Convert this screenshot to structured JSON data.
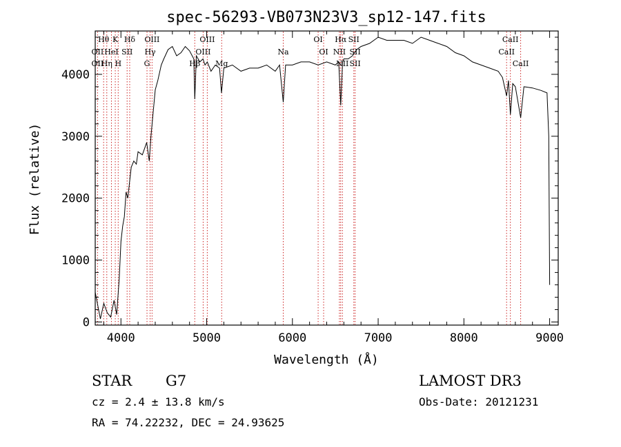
{
  "chart_data": {
    "type": "line",
    "title": "spec-56293-VB073N23V3_sp12-147.fits",
    "xlabel": "Wavelength (Å)",
    "ylabel": "Flux (relative)",
    "xlim": [
      3700,
      9100
    ],
    "ylim": [
      -50,
      4700
    ],
    "x_ticks": [
      4000,
      5000,
      6000,
      7000,
      8000,
      9000
    ],
    "y_ticks": [
      0,
      1000,
      2000,
      3000,
      4000
    ],
    "grid": false,
    "series": [
      {
        "x": [
          3700,
          3760,
          3800,
          3840,
          3880,
          3920,
          3950,
          3980,
          4000,
          4020,
          4040,
          4060,
          4080,
          4100,
          4120,
          4150,
          4180,
          4200,
          4250,
          4300,
          4330,
          4350,
          4380,
          4400,
          4430,
          4470,
          4500,
          4550,
          4600,
          4650,
          4700,
          4750,
          4800,
          4850,
          4861,
          4880,
          4920,
          4957,
          4980,
          5007,
          5050,
          5100,
          5150,
          5173,
          5200,
          5300,
          5400,
          5500,
          5600,
          5700,
          5800,
          5850,
          5893,
          5920,
          6000,
          6100,
          6200,
          6300,
          6400,
          6500,
          6540,
          6563,
          6585,
          6600,
          6650,
          6700,
          6750,
          6800,
          6900,
          7000,
          7100,
          7200,
          7300,
          7400,
          7500,
          7600,
          7700,
          7800,
          7900,
          8000,
          8100,
          8200,
          8300,
          8400,
          8450,
          8498,
          8520,
          8542,
          8570,
          8600,
          8662,
          8700,
          8800,
          8900,
          8970,
          8990,
          9000
        ],
        "y": [
          480,
          50,
          300,
          150,
          80,
          350,
          120,
          700,
          1300,
          1550,
          1700,
          2100,
          2000,
          2250,
          2500,
          2600,
          2550,
          2750,
          2700,
          2900,
          2600,
          3000,
          3450,
          3750,
          3900,
          4150,
          4250,
          4400,
          4450,
          4300,
          4350,
          4450,
          4380,
          4250,
          3600,
          4300,
          4200,
          4250,
          4150,
          4200,
          4050,
          4150,
          4100,
          3700,
          4100,
          4150,
          4050,
          4100,
          4100,
          4150,
          4050,
          4150,
          3550,
          4150,
          4150,
          4200,
          4200,
          4150,
          4200,
          4150,
          4200,
          3500,
          4200,
          4250,
          4250,
          4300,
          4400,
          4450,
          4500,
          4600,
          4550,
          4550,
          4550,
          4500,
          4600,
          4550,
          4500,
          4450,
          4350,
          4300,
          4200,
          4150,
          4100,
          4050,
          3950,
          3650,
          3900,
          3350,
          3850,
          3800,
          3300,
          3800,
          3780,
          3740,
          3700,
          3000,
          600
        ]
      }
    ],
    "line_labels": [
      {
        "text": "Hθ",
        "wavelength": 3798,
        "row": 0
      },
      {
        "text": "K",
        "wavelength": 3934,
        "row": 0
      },
      {
        "text": "Hδ",
        "wavelength": 4102,
        "row": 0
      },
      {
        "text": "OIII",
        "wavelength": 4363,
        "row": 0
      },
      {
        "text": "OIII",
        "wavelength": 5007,
        "row": 0
      },
      {
        "text": "OI",
        "wavelength": 6300,
        "row": 0
      },
      {
        "text": "Hα",
        "wavelength": 6563,
        "row": 0
      },
      {
        "text": "SII",
        "wavelength": 6716,
        "row": 0
      },
      {
        "text": "CaII",
        "wavelength": 8542,
        "row": 0
      },
      {
        "text": "OII",
        "wavelength": 3727,
        "row": 1
      },
      {
        "text": "HeI",
        "wavelength": 3889,
        "row": 1
      },
      {
        "text": "SII",
        "wavelength": 4072,
        "row": 1
      },
      {
        "text": "Hγ",
        "wavelength": 4340,
        "row": 1
      },
      {
        "text": "OIII",
        "wavelength": 4959,
        "row": 1
      },
      {
        "text": "Na",
        "wavelength": 5893,
        "row": 1
      },
      {
        "text": "NII",
        "wavelength": 6548,
        "row": 1
      },
      {
        "text": "OI",
        "wavelength": 6364,
        "row": 1
      },
      {
        "text": "SII",
        "wavelength": 6731,
        "row": 1
      },
      {
        "text": "CaII",
        "wavelength": 8498,
        "row": 1
      },
      {
        "text": "OII",
        "wavelength": 3727,
        "row": 2
      },
      {
        "text": "Hη",
        "wavelength": 3835,
        "row": 2
      },
      {
        "text": "H",
        "wavelength": 3968,
        "row": 2
      },
      {
        "text": "G",
        "wavelength": 4304,
        "row": 2
      },
      {
        "text": "Hβ",
        "wavelength": 4861,
        "row": 2
      },
      {
        "text": "Mg",
        "wavelength": 5175,
        "row": 2
      },
      {
        "text": "NII",
        "wavelength": 6583,
        "row": 2
      },
      {
        "text": "SII",
        "wavelength": 6731,
        "row": 2
      },
      {
        "text": "CaII",
        "wavelength": 8662,
        "row": 2
      }
    ],
    "marker_lines": [
      3727,
      3798,
      3835,
      3889,
      3934,
      3968,
      4072,
      4102,
      4304,
      4340,
      4363,
      4861,
      4959,
      5007,
      5175,
      5893,
      6300,
      6364,
      6548,
      6563,
      6583,
      6716,
      6731,
      8498,
      8542,
      8662
    ],
    "marker_color": "#cc2222"
  },
  "info": {
    "object_type": "STAR",
    "subclass": "G7",
    "survey": "LAMOST DR3",
    "cz": "cz = 2.4 ± 13.8 km/s",
    "obs_date": "Obs-Date: 20121231",
    "coords": "RA =  74.22232, DEC =  24.93625"
  }
}
